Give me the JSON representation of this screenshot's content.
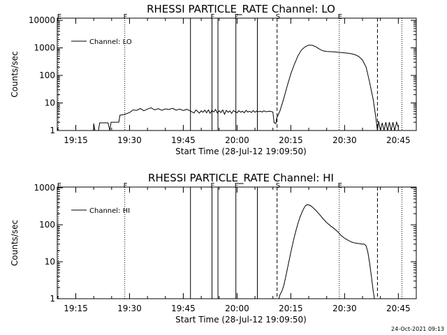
{
  "footer": {
    "timestamp": "24-Oct-2021 09:13"
  },
  "chart_data": [
    {
      "type": "line",
      "title": "RHESSI PARTICLE_RATE Channel: LO",
      "xlabel": "Start Time (28-Jul-12 19:09:50)",
      "ylabel": "Counts/sec",
      "y_scale": "log",
      "ylim": [
        1,
        12000
      ],
      "xlim_minutes_of_day": [
        "19:09:50",
        "20:50:00"
      ],
      "x_ticks": [
        "19:15",
        "19:30",
        "19:45",
        "20:00",
        "20:15",
        "20:30",
        "20:45"
      ],
      "y_ticks": [
        "1",
        "10",
        "100",
        "1000",
        "10000"
      ],
      "legend": {
        "placement": "top-left",
        "entries": [
          "Channel: LO"
        ]
      },
      "series": [
        {
          "name": "Channel: LO",
          "points": [
            [
              "19:09:50",
              0
            ],
            [
              "19:19:45",
              0
            ],
            [
              "19:20:00",
              1.8
            ],
            [
              "19:20:20",
              1.0
            ],
            [
              "19:21:20",
              1.0
            ],
            [
              "19:21:40",
              1.9
            ],
            [
              "19:24:00",
              1.9
            ],
            [
              "19:24:30",
              1.0
            ],
            [
              "19:24:50",
              2.0
            ],
            [
              "19:27:00",
              2.0
            ],
            [
              "19:27:20",
              3.6
            ],
            [
              "19:28:30",
              3.8
            ],
            [
              "19:30:00",
              4.5
            ],
            [
              "19:31:00",
              5.6
            ],
            [
              "19:32:00",
              5.4
            ],
            [
              "19:33:00",
              6.3
            ],
            [
              "19:34:00",
              5.2
            ],
            [
              "19:35:00",
              6.0
            ],
            [
              "19:36:00",
              6.7
            ],
            [
              "19:37:00",
              5.6
            ],
            [
              "19:38:00",
              6.2
            ],
            [
              "19:39:00",
              5.4
            ],
            [
              "19:40:00",
              6.1
            ],
            [
              "19:41:00",
              5.8
            ],
            [
              "19:42:00",
              6.4
            ],
            [
              "19:43:00",
              5.5
            ],
            [
              "19:44:00",
              6.0
            ],
            [
              "19:45:00",
              5.3
            ],
            [
              "19:46:00",
              5.9
            ],
            [
              "19:47:00",
              5.1
            ],
            [
              "19:48:00",
              4.3
            ],
            [
              "19:48:30",
              5.6
            ],
            [
              "19:49:00",
              4.9
            ],
            [
              "19:49:30",
              4.3
            ],
            [
              "19:50:00",
              5.2
            ],
            [
              "19:50:30",
              4.6
            ],
            [
              "19:51:00",
              5.5
            ],
            [
              "19:51:30",
              4.4
            ],
            [
              "19:52:00",
              5.6
            ],
            [
              "19:52:30",
              4.2
            ],
            [
              "19:53:00",
              5.4
            ],
            [
              "19:53:30",
              4.7
            ],
            [
              "19:54:00",
              5.8
            ],
            [
              "19:54:30",
              4.3
            ],
            [
              "19:55:00",
              5.2
            ],
            [
              "19:55:30",
              4.5
            ],
            [
              "19:56:00",
              5.6
            ],
            [
              "19:56:30",
              3.9
            ],
            [
              "19:57:00",
              5.4
            ],
            [
              "19:57:30",
              4.6
            ],
            [
              "19:58:00",
              5.1
            ],
            [
              "19:58:30",
              4.2
            ],
            [
              "19:59:00",
              5.3
            ],
            [
              "19:59:30",
              4.8
            ],
            [
              "20:00:00",
              4.4
            ],
            [
              "20:00:30",
              5.2
            ],
            [
              "20:01:00",
              4.6
            ],
            [
              "20:01:30",
              5.0
            ],
            [
              "20:02:00",
              4.4
            ],
            [
              "20:02:30",
              5.4
            ],
            [
              "20:03:00",
              4.7
            ],
            [
              "20:03:30",
              5.0
            ],
            [
              "20:04:00",
              4.5
            ],
            [
              "20:04:30",
              5.3
            ],
            [
              "20:05:00",
              4.6
            ],
            [
              "20:05:30",
              5.1
            ],
            [
              "20:06:00",
              4.8
            ],
            [
              "20:06:30",
              5.0
            ],
            [
              "20:07:00",
              4.7
            ],
            [
              "20:07:30",
              5.2
            ],
            [
              "20:08:00",
              4.8
            ],
            [
              "20:09:00",
              5.0
            ],
            [
              "20:09:30",
              4.9
            ],
            [
              "20:10:00",
              4.7
            ],
            [
              "20:10:20",
              1.9
            ],
            [
              "20:10:50",
              1.8
            ],
            [
              "20:11:00",
              2.7
            ],
            [
              "20:12:00",
              5.3
            ],
            [
              "20:13:00",
              14
            ],
            [
              "20:14:00",
              42
            ],
            [
              "20:15:00",
              115
            ],
            [
              "20:16:00",
              255
            ],
            [
              "20:17:00",
              520
            ],
            [
              "20:18:00",
              850
            ],
            [
              "20:19:00",
              1100
            ],
            [
              "20:20:00",
              1260
            ],
            [
              "20:21:00",
              1240
            ],
            [
              "20:22:00",
              1090
            ],
            [
              "20:23:00",
              900
            ],
            [
              "20:24:00",
              780
            ],
            [
              "20:25:00",
              740
            ],
            [
              "20:26:00",
              730
            ],
            [
              "20:27:00",
              720
            ],
            [
              "20:28:00",
              700
            ],
            [
              "20:29:00",
              680
            ],
            [
              "20:30:00",
              660
            ],
            [
              "20:31:00",
              640
            ],
            [
              "20:32:00",
              610
            ],
            [
              "20:33:00",
              560
            ],
            [
              "20:34:00",
              480
            ],
            [
              "20:35:00",
              360
            ],
            [
              "20:36:00",
              200
            ],
            [
              "20:37:00",
              55
            ],
            [
              "20:38:00",
              13
            ],
            [
              "20:38:40",
              3.4
            ],
            [
              "20:39:10",
              1.0
            ],
            [
              "20:39:30",
              2.2
            ],
            [
              "20:40:00",
              1.0
            ],
            [
              "20:40:30",
              1.9
            ],
            [
              "20:41:00",
              1.0
            ],
            [
              "20:41:30",
              2.0
            ],
            [
              "20:42:00",
              1.0
            ],
            [
              "20:42:30",
              2.0
            ],
            [
              "20:43:00",
              1.0
            ],
            [
              "20:43:30",
              2.0
            ],
            [
              "20:44:00",
              1.0
            ],
            [
              "20:44:30",
              2.0
            ],
            [
              "20:45:00",
              1.3
            ]
          ]
        }
      ],
      "annotations": [
        {
          "time": "19:10:10",
          "style": "dotted",
          "label": "E"
        },
        {
          "time": "19:28:40",
          "style": "dotted",
          "label": "F"
        },
        {
          "time": "19:47:00",
          "style": "solid",
          "label": ""
        },
        {
          "time": "19:53:00",
          "style": "solid",
          "label": "F"
        },
        {
          "time": "19:54:40",
          "style": "solid",
          "label": ""
        },
        {
          "time": "19:59:40",
          "style": "solid",
          "label": "F"
        },
        {
          "time": "20:05:40",
          "style": "solid",
          "label": ""
        },
        {
          "time": "20:11:10",
          "style": "dashed",
          "label": "S"
        },
        {
          "time": "20:28:30",
          "style": "dotted",
          "label": "E"
        },
        {
          "time": "20:39:10",
          "style": "dashed",
          "label": ""
        },
        {
          "time": "20:46:00",
          "style": "dotted",
          "label": ""
        }
      ]
    },
    {
      "type": "line",
      "title": "RHESSI PARTICLE_RATE Channel: HI",
      "xlabel": "Start Time (28-Jul-12 19:09:50)",
      "ylabel": "Counts/sec",
      "y_scale": "log",
      "ylim": [
        1,
        1050
      ],
      "xlim_minutes_of_day": [
        "19:09:50",
        "20:50:00"
      ],
      "x_ticks": [
        "19:15",
        "19:30",
        "19:45",
        "20:00",
        "20:15",
        "20:30",
        "20:45"
      ],
      "y_ticks": [
        "1",
        "10",
        "100",
        "1000"
      ],
      "legend": {
        "placement": "top-left",
        "entries": [
          "Channel: HI"
        ]
      },
      "series": [
        {
          "name": "Channel: HI",
          "points": [
            [
              "20:11:40",
              1.0
            ],
            [
              "20:12:00",
              1.3
            ],
            [
              "20:12:30",
              1.6
            ],
            [
              "20:13:00",
              2.2
            ],
            [
              "20:13:30",
              3.6
            ],
            [
              "20:14:00",
              6.2
            ],
            [
              "20:14:30",
              10.5
            ],
            [
              "20:15:00",
              18
            ],
            [
              "20:15:30",
              30
            ],
            [
              "20:16:00",
              48
            ],
            [
              "20:16:30",
              74
            ],
            [
              "20:17:00",
              110
            ],
            [
              "20:17:30",
              155
            ],
            [
              "20:18:00",
              205
            ],
            [
              "20:18:30",
              265
            ],
            [
              "20:19:00",
              320
            ],
            [
              "20:19:30",
              350
            ],
            [
              "20:20:00",
              345
            ],
            [
              "20:20:30",
              330
            ],
            [
              "20:21:00",
              300
            ],
            [
              "20:22:00",
              245
            ],
            [
              "20:23:00",
              190
            ],
            [
              "20:24:00",
              145
            ],
            [
              "20:25:00",
              115
            ],
            [
              "20:26:00",
              95
            ],
            [
              "20:27:00",
              80
            ],
            [
              "20:28:00",
              66
            ],
            [
              "20:29:00",
              52
            ],
            [
              "20:30:00",
              43
            ],
            [
              "20:31:00",
              38
            ],
            [
              "20:32:00",
              34
            ],
            [
              "20:33:00",
              32
            ],
            [
              "20:34:00",
              31
            ],
            [
              "20:35:00",
              30
            ],
            [
              "20:35:30",
              30
            ],
            [
              "20:36:00",
              27
            ],
            [
              "20:36:30",
              18
            ],
            [
              "20:37:00",
              9
            ],
            [
              "20:37:30",
              3.8
            ],
            [
              "20:38:00",
              1.6
            ],
            [
              "20:38:20",
              1.0
            ]
          ]
        }
      ],
      "annotations": [
        {
          "time": "19:10:10",
          "style": "dotted",
          "label": "E"
        },
        {
          "time": "19:28:40",
          "style": "dotted",
          "label": "F"
        },
        {
          "time": "19:47:00",
          "style": "solid",
          "label": ""
        },
        {
          "time": "19:53:00",
          "style": "solid",
          "label": "F"
        },
        {
          "time": "19:54:40",
          "style": "solid",
          "label": ""
        },
        {
          "time": "19:59:40",
          "style": "solid",
          "label": "F"
        },
        {
          "time": "20:05:40",
          "style": "solid",
          "label": ""
        },
        {
          "time": "20:11:10",
          "style": "dashed",
          "label": "S"
        },
        {
          "time": "20:28:30",
          "style": "dotted",
          "label": "E"
        },
        {
          "time": "20:39:10",
          "style": "dashed",
          "label": ""
        },
        {
          "time": "20:46:00",
          "style": "dotted",
          "label": ""
        }
      ]
    }
  ]
}
